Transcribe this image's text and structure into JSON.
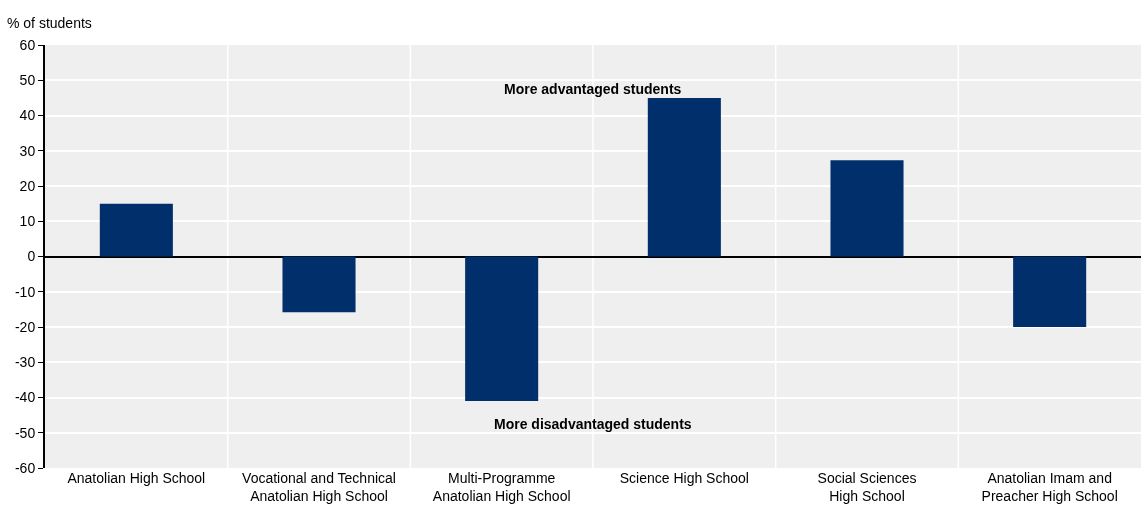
{
  "chart_data": {
    "type": "bar",
    "ylabel": "% of students",
    "categories": [
      "Anatolian High School",
      "Vocational and Technical Anatolian High School",
      "Multi-Programme Anatolian High School",
      "Science High School",
      "Social Sciences High School",
      "Anatolian Imam and Preacher High School"
    ],
    "values": [
      15,
      -15.8,
      -41,
      45,
      27.3,
      -20
    ],
    "color": "#002f6c",
    "ylim": [
      -60,
      60
    ],
    "yticks": [
      -60,
      -50,
      -40,
      -30,
      -20,
      -10,
      0,
      10,
      20,
      30,
      40,
      50,
      60
    ],
    "grid": true,
    "annotations": [
      "More advantaged students",
      "More disadvantaged students"
    ]
  }
}
